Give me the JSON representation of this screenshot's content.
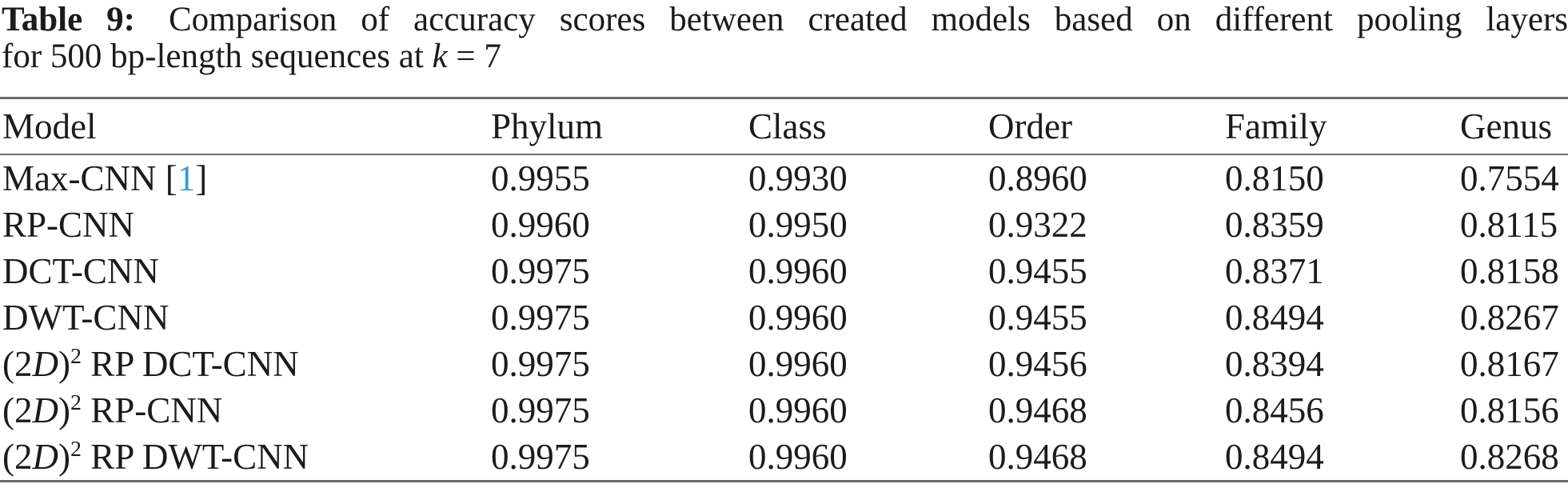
{
  "caption": {
    "label": "Table 9:",
    "line1_rest": "Comparison of accuracy scores between created models based on different pooling layers",
    "line2_pre": "for 500 bp-length sequences at ",
    "line2_var": "k",
    "line2_post": " = 7"
  },
  "colors": {
    "text": "#1b1b1b",
    "citation_blue": "#349bd4",
    "rule_gray": "#6e6e6e"
  },
  "table": {
    "columns": [
      "Model",
      "Phylum",
      "Class",
      "Order",
      "Family",
      "Genus"
    ],
    "rows": [
      {
        "model": [
          {
            "t": "Max-CNN ["
          },
          {
            "t": "1",
            "s": "cite"
          },
          {
            "t": "]"
          }
        ],
        "values": [
          "0.9955",
          "0.9930",
          "0.8960",
          "0.8150",
          "0.7554"
        ]
      },
      {
        "model": [
          {
            "t": "RP-CNN"
          }
        ],
        "values": [
          "0.9960",
          "0.9950",
          "0.9322",
          "0.8359",
          "0.8115"
        ]
      },
      {
        "model": [
          {
            "t": "DCT-CNN"
          }
        ],
        "values": [
          "0.9975",
          "0.9960",
          "0.9455",
          "0.8371",
          "0.8158"
        ]
      },
      {
        "model": [
          {
            "t": "DWT-CNN"
          }
        ],
        "values": [
          "0.9975",
          "0.9960",
          "0.9455",
          "0.8494",
          "0.8267"
        ]
      },
      {
        "model": [
          {
            "t": "(2"
          },
          {
            "t": "D",
            "s": "i"
          },
          {
            "t": ")"
          },
          {
            "t": "2",
            "s": "sup"
          },
          {
            "t": " RP DCT-CNN"
          }
        ],
        "values": [
          "0.9975",
          "0.9960",
          "0.9456",
          "0.8394",
          "0.8167"
        ]
      },
      {
        "model": [
          {
            "t": "(2"
          },
          {
            "t": "D",
            "s": "i"
          },
          {
            "t": ")"
          },
          {
            "t": "2",
            "s": "sup"
          },
          {
            "t": " RP-CNN"
          }
        ],
        "values": [
          "0.9975",
          "0.9960",
          "0.9468",
          "0.8456",
          "0.8156"
        ]
      },
      {
        "model": [
          {
            "t": "(2"
          },
          {
            "t": "D",
            "s": "i"
          },
          {
            "t": ")"
          },
          {
            "t": "2",
            "s": "sup"
          },
          {
            "t": " RP DWT-CNN"
          }
        ],
        "values": [
          "0.9975",
          "0.9960",
          "0.9468",
          "0.8494",
          "0.8268"
        ]
      }
    ]
  }
}
